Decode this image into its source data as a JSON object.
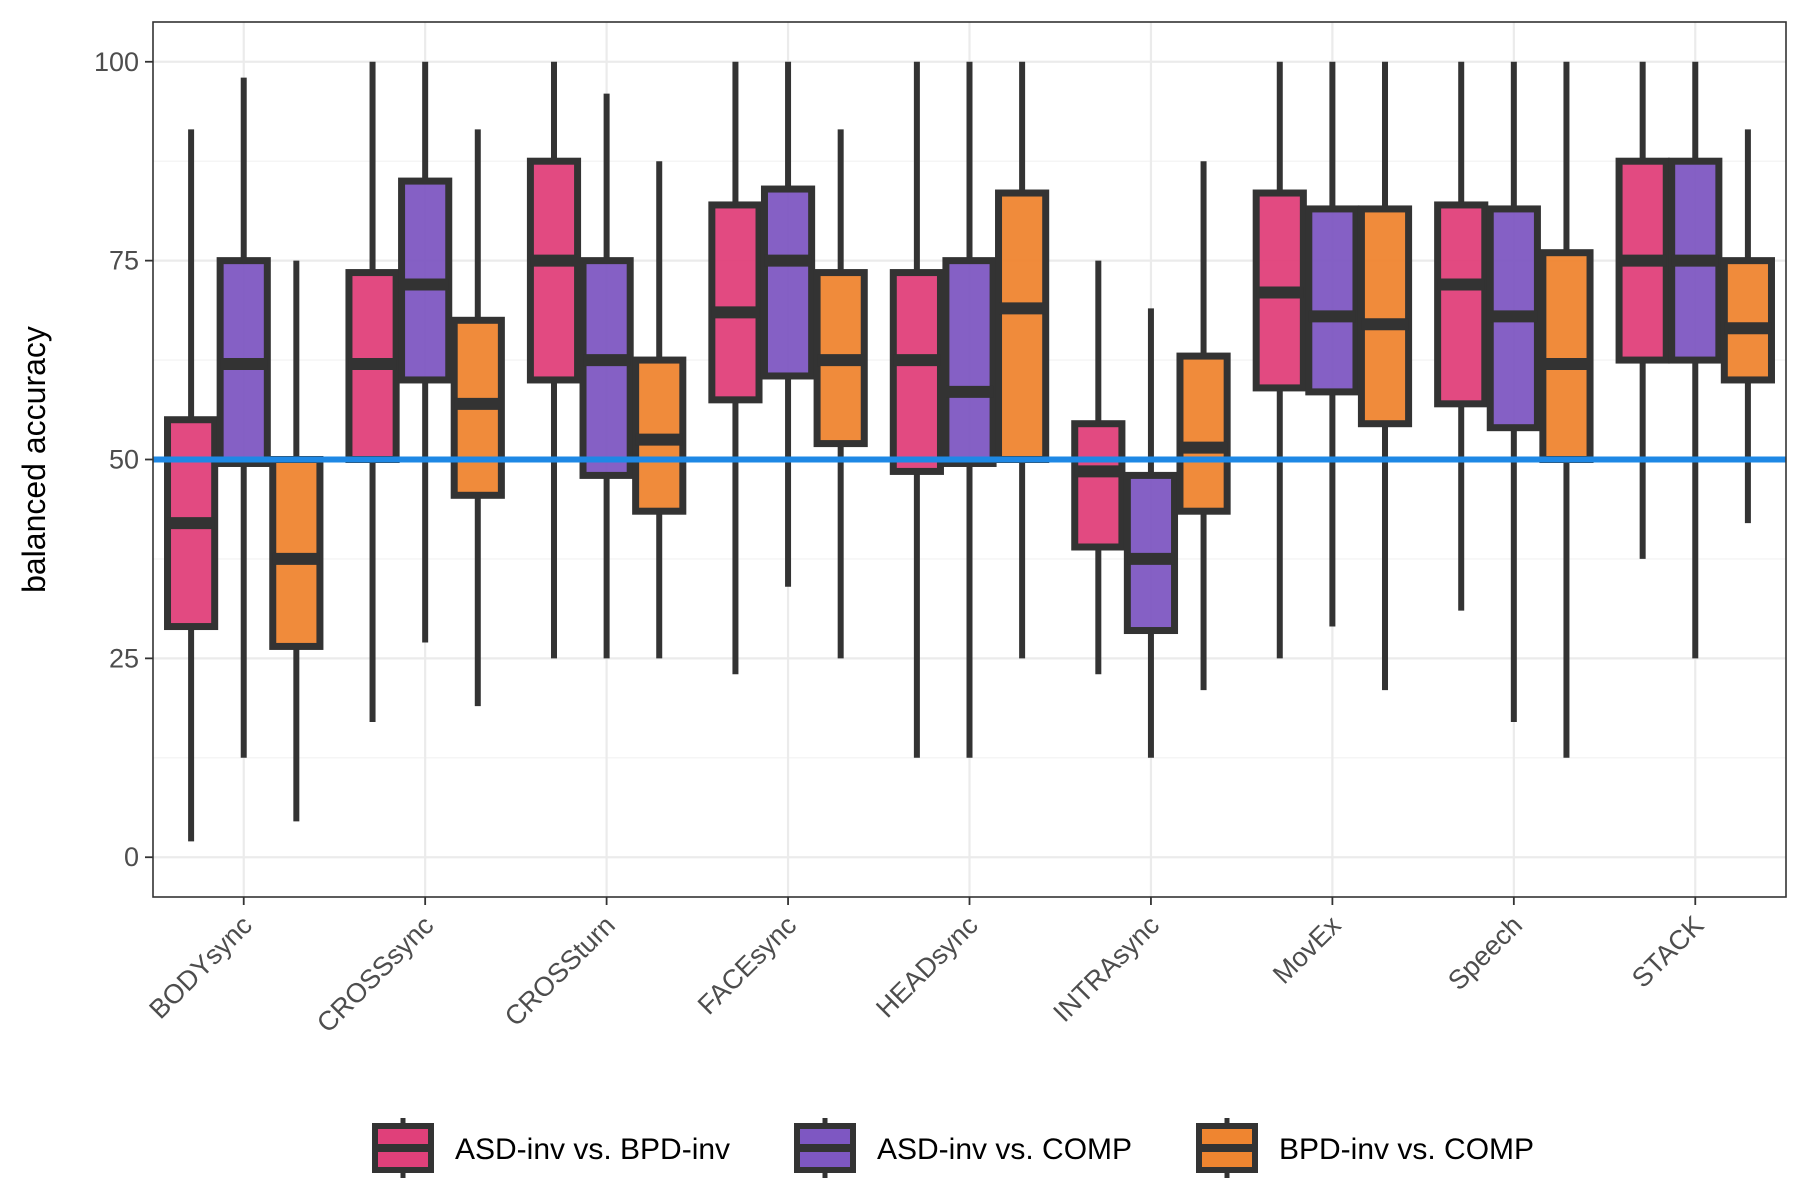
{
  "chart_data": {
    "type": "box",
    "ylabel": "balanced accuracy",
    "xlabel": "",
    "ylim": [
      -5,
      105
    ],
    "yticks": [
      0,
      25,
      50,
      75,
      100
    ],
    "grid": true,
    "reference_line": {
      "y": 50,
      "color": "#1e88e5"
    },
    "legend_position": "bottom",
    "categories": [
      "BODYsync",
      "CROSSsync",
      "CROSSturn",
      "FACEsync",
      "HEADsync",
      "INTRAsync",
      "MovEx",
      "Speech",
      "STACK"
    ],
    "series": [
      {
        "name": "ASD-inv vs. BPD-inv",
        "color": "#e0407a",
        "boxes": [
          {
            "min": 2,
            "q1": 29,
            "median": 42,
            "q3": 55,
            "max": 91.5
          },
          {
            "min": 17,
            "q1": 50,
            "median": 62,
            "q3": 73.5,
            "max": 100
          },
          {
            "min": 25,
            "q1": 60,
            "median": 75,
            "q3": 87.5,
            "max": 100
          },
          {
            "min": 23,
            "q1": 57.5,
            "median": 68.5,
            "q3": 82,
            "max": 100
          },
          {
            "min": 12.5,
            "q1": 48.5,
            "median": 62.5,
            "q3": 73.5,
            "max": 100
          },
          {
            "min": 23,
            "q1": 39,
            "median": 48.5,
            "q3": 54.5,
            "max": 75
          },
          {
            "min": 25,
            "q1": 59,
            "median": 71,
            "q3": 83.5,
            "max": 100
          },
          {
            "min": 31,
            "q1": 57,
            "median": 72,
            "q3": 82,
            "max": 100
          },
          {
            "min": 37.5,
            "q1": 62.5,
            "median": 75,
            "q3": 87.5,
            "max": 100
          }
        ]
      },
      {
        "name": "ASD-inv vs. COMP",
        "color": "#7e57c2",
        "boxes": [
          {
            "min": 12.5,
            "q1": 49.5,
            "median": 62,
            "q3": 75,
            "max": 98
          },
          {
            "min": 27,
            "q1": 60,
            "median": 72,
            "q3": 85,
            "max": 100
          },
          {
            "min": 25,
            "q1": 48,
            "median": 62.5,
            "q3": 75,
            "max": 96
          },
          {
            "min": 34,
            "q1": 60.5,
            "median": 75,
            "q3": 84,
            "max": 100
          },
          {
            "min": 12.5,
            "q1": 49.5,
            "median": 58.5,
            "q3": 75,
            "max": 100
          },
          {
            "min": 12.5,
            "q1": 28.5,
            "median": 37.5,
            "q3": 48,
            "max": 69
          },
          {
            "min": 29,
            "q1": 58.5,
            "median": 68,
            "q3": 81.5,
            "max": 100
          },
          {
            "min": 17,
            "q1": 54,
            "median": 68,
            "q3": 81.5,
            "max": 100
          },
          {
            "min": 25,
            "q1": 62.5,
            "median": 75,
            "q3": 87.5,
            "max": 100
          }
        ]
      },
      {
        "name": "BPD-inv vs. COMP",
        "color": "#ef8530",
        "boxes": [
          {
            "min": 4.5,
            "q1": 26.5,
            "median": 37.5,
            "q3": 50,
            "max": 75
          },
          {
            "min": 19,
            "q1": 45.5,
            "median": 57,
            "q3": 67.5,
            "max": 91.5
          },
          {
            "min": 25,
            "q1": 43.5,
            "median": 52.5,
            "q3": 62.5,
            "max": 87.5
          },
          {
            "min": 25,
            "q1": 52,
            "median": 62.5,
            "q3": 73.5,
            "max": 91.5
          },
          {
            "min": 25,
            "q1": 50,
            "median": 69,
            "q3": 83.5,
            "max": 100
          },
          {
            "min": 21,
            "q1": 43.5,
            "median": 51.5,
            "q3": 63,
            "max": 87.5
          },
          {
            "min": 21,
            "q1": 54.5,
            "median": 67,
            "q3": 81.5,
            "max": 100
          },
          {
            "min": 12.5,
            "q1": 50,
            "median": 62,
            "q3": 76,
            "max": 100
          },
          {
            "min": 42,
            "q1": 60,
            "median": 66.5,
            "q3": 75,
            "max": 91.5
          }
        ]
      }
    ]
  }
}
